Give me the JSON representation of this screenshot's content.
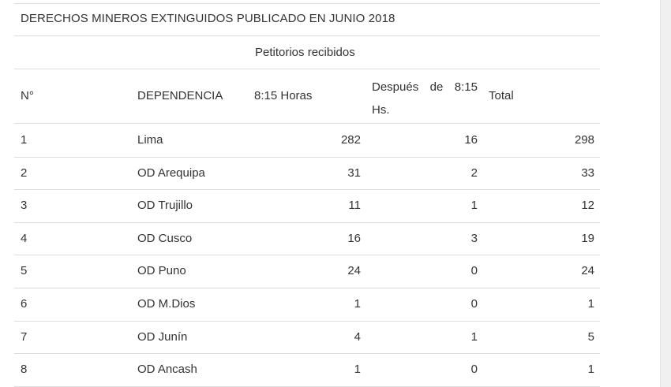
{
  "title": "DERECHOS MINEROS EXTINGUIDOS PUBLICADO EN JUNIO  2018",
  "subheader": "Petitorios recibidos",
  "headers": {
    "num": "N°",
    "dependencia": "DEPENDENCIA",
    "horas": "8:15 Horas",
    "despues_line1": "Después de 8:15",
    "despues_line2": "Hs.",
    "total": "Total"
  },
  "rows": [
    {
      "n": "1",
      "dependencia": "Lima",
      "horas": "282",
      "despues": "16",
      "total": "298"
    },
    {
      "n": "2",
      "dependencia": "OD Arequipa",
      "horas": "31",
      "despues": "2",
      "total": "33"
    },
    {
      "n": "3",
      "dependencia": "OD Trujillo",
      "horas": "11",
      "despues": "1",
      "total": "12"
    },
    {
      "n": "4",
      "dependencia": "OD Cusco",
      "horas": "16",
      "despues": "3",
      "total": "19"
    },
    {
      "n": "5",
      "dependencia": "OD Puno",
      "horas": "24",
      "despues": "0",
      "total": "24"
    },
    {
      "n": "6",
      "dependencia": "OD M.Dios",
      "horas": "1",
      "despues": "0",
      "total": "1"
    },
    {
      "n": "7",
      "dependencia": "OD Junín",
      "horas": "4",
      "despues": "1",
      "total": "5"
    },
    {
      "n": "8",
      "dependencia": "OD Ancash",
      "horas": "1",
      "despues": "0",
      "total": "1"
    }
  ]
}
